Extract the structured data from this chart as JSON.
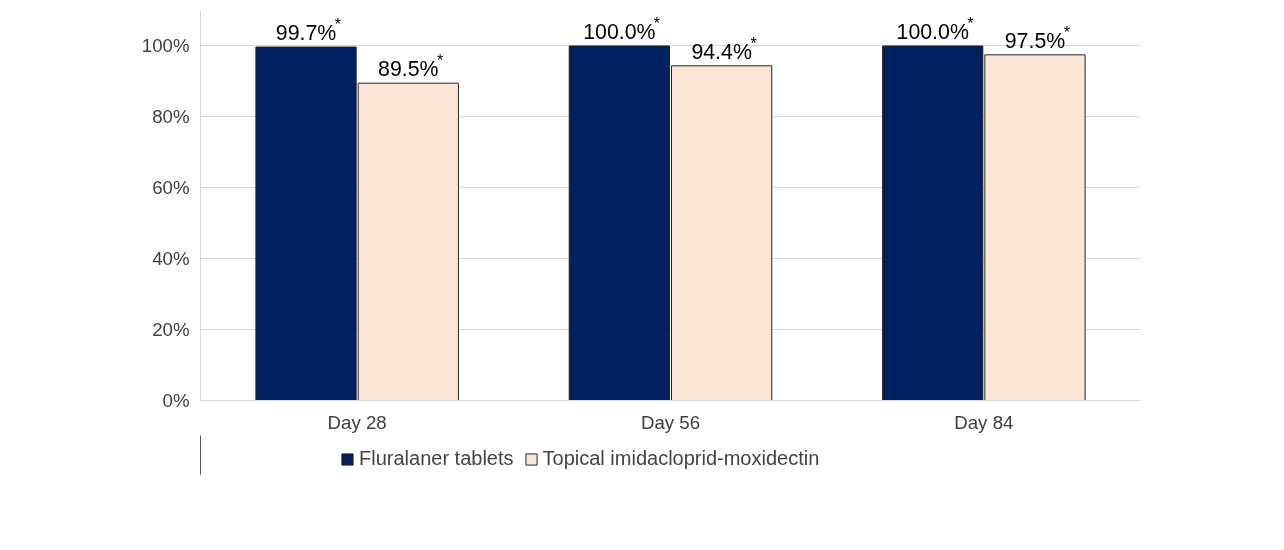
{
  "chart_data": {
    "type": "bar",
    "categories": [
      "Day 28",
      "Day 56",
      "Day 84"
    ],
    "series": [
      {
        "name": "Fluralaner tablets",
        "color": "#002060",
        "values": [
          99.7,
          100.0,
          100.0
        ],
        "value_labels": [
          "99.7%$^{*}$",
          "100.0%$^{*}$",
          "100.0%$^{*}$"
        ]
      },
      {
        "name": "Topical imidacloprid-moxidectin",
        "color": "#fbe5d6",
        "values": [
          89.5,
          94.4,
          97.5
        ],
        "value_labels": [
          "89.5%$^{*}$",
          "94.4%$^{*}$",
          "97.5%$^{*}$"
        ]
      }
    ],
    "ylim": [
      0,
      110
    ],
    "yticks": [
      {
        "value": 0,
        "label": "0%"
      },
      {
        "value": 20,
        "label": "20%"
      },
      {
        "value": 40,
        "label": "40%"
      },
      {
        "value": 60,
        "label": "60%"
      },
      {
        "value": 80,
        "label": "80%"
      },
      {
        "value": 100,
        "label": "100%"
      }
    ],
    "grid": "y",
    "legend": "bottom"
  }
}
